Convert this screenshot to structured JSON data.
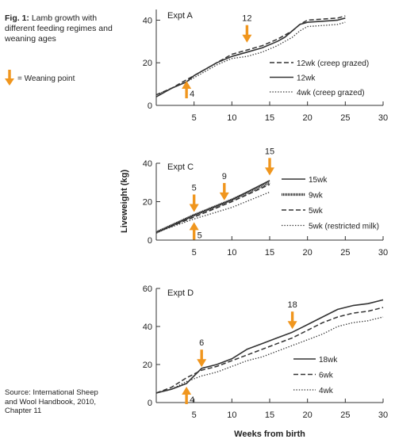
{
  "figure": {
    "number": "Fig. 1:",
    "title": "Lamb growth with different feeding regimes and weaning ages",
    "weaning_key_label": "= Weaning point",
    "source": "Source: International Sheep and Wool Handbook, 2010, Chapter 11",
    "ylabel": "Liveweight (kg)",
    "xlabel": "Weeks from birth",
    "colors": {
      "axis": "#333333",
      "line": "#333333",
      "arrow": "#f0961e"
    }
  },
  "chart_data": [
    {
      "type": "line",
      "title": "Expt A",
      "xlim": [
        0,
        30
      ],
      "ylim": [
        0,
        45
      ],
      "xticks": [
        5,
        10,
        15,
        20,
        25,
        30
      ],
      "yticks": [
        0,
        20,
        40
      ],
      "legend_position": "right",
      "series": [
        {
          "name": "12wk (creep grazed)",
          "style": "dashed",
          "x": [
            0,
            2,
            4,
            5,
            6,
            8,
            10,
            12,
            14,
            16,
            17,
            18,
            19,
            20,
            22,
            24,
            25
          ],
          "y": [
            5,
            8,
            12,
            14,
            16,
            20,
            24,
            26,
            28,
            31,
            33,
            35,
            38,
            40,
            40.5,
            41,
            42
          ]
        },
        {
          "name": "12wk",
          "style": "solid",
          "x": [
            0,
            2,
            4,
            5,
            6,
            8,
            10,
            12,
            14,
            16,
            17,
            18,
            19,
            20,
            22,
            24,
            25
          ],
          "y": [
            4,
            8,
            11,
            14,
            16,
            20,
            23,
            25,
            27,
            30,
            32,
            35,
            38,
            39,
            39.5,
            40,
            41
          ]
        },
        {
          "name": "4wk (creep grazed)",
          "style": "dotted",
          "x": [
            0,
            2,
            4,
            5,
            6,
            8,
            10,
            12,
            14,
            16,
            17,
            18,
            19,
            20,
            22,
            24,
            25
          ],
          "y": [
            5,
            8,
            11,
            13,
            15,
            19,
            22,
            23,
            25,
            28,
            30,
            32,
            35,
            37,
            37.5,
            38,
            39
          ]
        }
      ],
      "weaning_points": [
        {
          "label": "4",
          "x": 4,
          "y": 13,
          "from": "below"
        },
        {
          "label": "12",
          "x": 12,
          "y": 28,
          "from": "above"
        }
      ]
    },
    {
      "type": "line",
      "title": "Expt C",
      "xlim": [
        0,
        30
      ],
      "ylim": [
        0,
        40
      ],
      "xticks": [
        5,
        10,
        15,
        20,
        25,
        30
      ],
      "yticks": [
        0,
        20,
        40
      ],
      "legend_position": "right",
      "series": [
        {
          "name": "15wk",
          "style": "solid",
          "x": [
            0,
            5,
            10,
            15
          ],
          "y": [
            4,
            13,
            21,
            31
          ]
        },
        {
          "name": "9wk",
          "style": "thick",
          "x": [
            0,
            5,
            10,
            15
          ],
          "y": [
            4,
            13,
            21,
            30
          ]
        },
        {
          "name": "5wk",
          "style": "dashed",
          "x": [
            0,
            5,
            10,
            15
          ],
          "y": [
            4,
            12,
            20,
            29
          ]
        },
        {
          "name": "5wk (restricted milk)",
          "style": "dotted",
          "x": [
            0,
            5,
            10,
            15
          ],
          "y": [
            4,
            11,
            17,
            25
          ]
        }
      ],
      "weaning_points": [
        {
          "label": "5",
          "x": 5,
          "y": 13,
          "from": "above"
        },
        {
          "label": "5",
          "x": 5,
          "y": 11,
          "from": "below"
        },
        {
          "label": "9",
          "x": 9,
          "y": 19,
          "from": "above"
        },
        {
          "label": "15",
          "x": 15,
          "y": 32,
          "from": "above"
        }
      ]
    },
    {
      "type": "line",
      "title": "Expt D",
      "xlim": [
        0,
        30
      ],
      "ylim": [
        0,
        60
      ],
      "xticks": [
        5,
        10,
        15,
        20,
        25,
        30
      ],
      "yticks": [
        0,
        20,
        40,
        60
      ],
      "legend_position": "bottom-right",
      "series": [
        {
          "name": "18wk",
          "style": "solid",
          "x": [
            0,
            2,
            4,
            6,
            8,
            10,
            12,
            14,
            16,
            18,
            20,
            22,
            24,
            26,
            28,
            30
          ],
          "y": [
            5,
            7,
            10,
            18,
            20,
            23,
            28,
            31,
            34,
            37,
            41,
            45,
            49,
            51,
            52,
            54
          ]
        },
        {
          "name": "6wk",
          "style": "dashed",
          "x": [
            0,
            2,
            4,
            6,
            8,
            10,
            12,
            14,
            16,
            18,
            20,
            22,
            24,
            26,
            28,
            30
          ],
          "y": [
            5,
            8,
            13,
            17,
            19,
            22,
            25,
            28,
            31,
            34,
            38,
            42,
            45,
            47,
            48,
            50
          ]
        },
        {
          "name": "4wk",
          "style": "dotted",
          "x": [
            0,
            2,
            4,
            6,
            8,
            10,
            12,
            14,
            16,
            18,
            20,
            22,
            24,
            26,
            28,
            30
          ],
          "y": [
            5,
            7,
            11,
            14,
            16,
            19,
            22,
            24,
            27,
            30,
            33,
            36,
            40,
            42,
            43,
            45
          ]
        }
      ],
      "weaning_points": [
        {
          "label": "4",
          "x": 4,
          "y": 10,
          "from": "below"
        },
        {
          "label": "6",
          "x": 6,
          "y": 17,
          "from": "above"
        },
        {
          "label": "18",
          "x": 18,
          "y": 37,
          "from": "above"
        }
      ]
    }
  ]
}
